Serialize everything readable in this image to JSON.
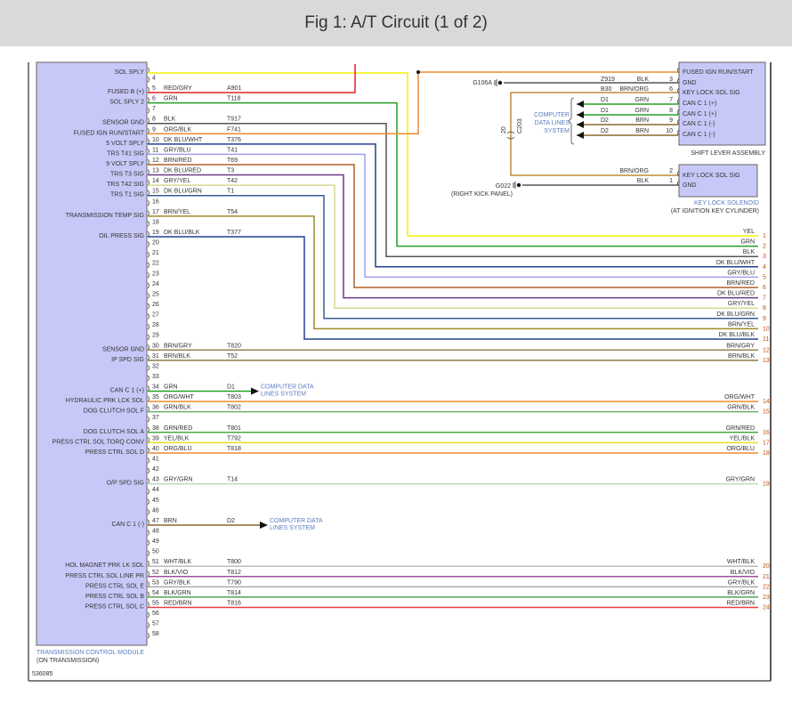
{
  "title": "Fig 1: A/T Circuit (1 of 2)",
  "figure_id": "536085",
  "colors": {
    "module_fill": "#c8c8f8",
    "module_label": "#5a7cc0",
    "title_bar": "#d9d9d9"
  },
  "tcm": {
    "name": "TRANSMISSION CONTROL MODULE",
    "location": "(ON TRANSMISSION)",
    "pin_numbers": [
      4,
      5,
      6,
      7,
      8,
      9,
      10,
      11,
      12,
      13,
      14,
      15,
      16,
      17,
      18,
      19,
      20,
      21,
      22,
      23,
      24,
      25,
      26,
      27,
      28,
      29,
      30,
      31,
      32,
      33,
      34,
      35,
      36,
      37,
      38,
      39,
      40,
      41,
      42,
      43,
      44,
      45,
      46,
      47,
      48,
      49,
      50,
      51,
      52,
      53,
      54,
      55,
      56,
      57,
      58
    ],
    "pins": [
      {
        "pin": 3,
        "label": "SOL SPLY",
        "wire": "",
        "circuit": "",
        "hex": "#f2f200",
        "route": "right",
        "row": 1
      },
      {
        "pin": 5,
        "label": "FUSED B (+)",
        "wire": "RED/GRY",
        "circuit": "A901",
        "hex": "#e02020",
        "route": "up"
      },
      {
        "pin": 6,
        "label": "SOL SPLY 2",
        "wire": "GRN",
        "circuit": "T118",
        "hex": "#22a022",
        "route": "right",
        "row": 2
      },
      {
        "pin": 8,
        "label": "SENSOR GND",
        "wire": "BLK",
        "circuit": "T917",
        "hex": "#555555",
        "route": "right",
        "row": 3
      },
      {
        "pin": 9,
        "label": "FUSED IGN RUN/START",
        "wire": "ORG/BLK",
        "circuit": "F741",
        "hex": "#f08a30",
        "route": "ign"
      },
      {
        "pin": 10,
        "label": "5 VOLT SPLY",
        "wire": "DK BLU/WHT",
        "circuit": "T376",
        "hex": "#24408f",
        "route": "right",
        "row": 4
      },
      {
        "pin": 11,
        "label": "TRS T41 SIG",
        "wire": "GRY/BLU",
        "circuit": "T41",
        "hex": "#a0a0ee",
        "route": "right",
        "row": 5
      },
      {
        "pin": 12,
        "label": "9 VOLT SPLY",
        "wire": "BRN/RED",
        "circuit": "T69",
        "hex": "#b0602a",
        "route": "right",
        "row": 6
      },
      {
        "pin": 13,
        "label": "TRS T3 SIG",
        "wire": "DK BLU/RED",
        "circuit": "T3",
        "hex": "#6a3a8a",
        "route": "right",
        "row": 7
      },
      {
        "pin": 14,
        "label": "TRS T42 SIG",
        "wire": "GRY/YEL",
        "circuit": "T42",
        "hex": "#d8d890",
        "route": "right",
        "row": 8
      },
      {
        "pin": 15,
        "label": "TRS T1 SIG",
        "wire": "DK BLU/GRN",
        "circuit": "T1",
        "hex": "#3a5a9a",
        "route": "right",
        "row": 9
      },
      {
        "pin": 17,
        "label": "TRANSMISSION TEMP SIG",
        "wire": "BRN/YEL",
        "circuit": "T54",
        "hex": "#a08a2a",
        "route": "right",
        "row": 10
      },
      {
        "pin": 19,
        "label": "OIL PRESS SIG",
        "wire": "DK BLU/BLK",
        "circuit": "T377",
        "hex": "#24408f",
        "route": "right",
        "row": 11
      },
      {
        "pin": 30,
        "label": "SENSOR GND",
        "wire": "BRN/GRY",
        "circuit": "T820",
        "hex": "#9a8050",
        "route": "straight",
        "row": 12
      },
      {
        "pin": 31,
        "label": "IP SPD SIG",
        "wire": "BRN/BLK",
        "circuit": "T52",
        "hex": "#8a7a4a",
        "route": "straight",
        "row": 13
      },
      {
        "pin": 34,
        "label": "CAN C 1 (+)",
        "wire": "GRN",
        "circuit": "D1",
        "hex": "#22a022",
        "route": "arrow",
        "dest": [
          "COMPUTER DATA",
          "LINES SYSTEM"
        ]
      },
      {
        "pin": 35,
        "label": "HYDRAULIC PRK LCK SOL",
        "wire": "ORG/WHT",
        "circuit": "T803",
        "hex": "#f08a30",
        "route": "straight",
        "row": 14
      },
      {
        "pin": 36,
        "label": "DOG CLUTCH SOL F",
        "wire": "GRN/BLK",
        "circuit": "T802",
        "hex": "#6ab06a",
        "route": "straight",
        "row": 15
      },
      {
        "pin": 38,
        "label": "DOG CLUTCH SOL A",
        "wire": "GRN/RED",
        "circuit": "T801",
        "hex": "#44aa44",
        "route": "straight",
        "row": 16
      },
      {
        "pin": 39,
        "label": "PRESS CTRL SOL TORQ CONV",
        "wire": "YEL/BLK",
        "circuit": "T792",
        "hex": "#e0e020",
        "route": "straight",
        "row": 17
      },
      {
        "pin": 40,
        "label": "PRESS CTRL SOL D",
        "wire": "ORG/BLU",
        "circuit": "T818",
        "hex": "#f08a30",
        "route": "straight",
        "row": 18
      },
      {
        "pin": 43,
        "label": "O/P SPD SIG",
        "wire": "GRY/GRN",
        "circuit": "T14",
        "hex": "#c0d8c0",
        "route": "straight",
        "row": 19
      },
      {
        "pin": 47,
        "label": "CAN C 1 (-)",
        "wire": "BRN",
        "circuit": "D2",
        "hex": "#8a6a2a",
        "route": "arrow",
        "dest": [
          "COMPUTER DATA",
          "LINES SYSTEM"
        ]
      },
      {
        "pin": 51,
        "label": "HOL MAGNET PRK LK SOL",
        "wire": "WHT/BLK",
        "circuit": "T800",
        "hex": "#bbbbbb",
        "route": "straight",
        "row": 20
      },
      {
        "pin": 52,
        "label": "PRESS CTRL SOL LINE PR",
        "wire": "BLK/VIO",
        "circuit": "T812",
        "hex": "#a050a0",
        "route": "straight",
        "row": 21
      },
      {
        "pin": 53,
        "label": "PRESS CTRL SOL E",
        "wire": "GRY/BLK",
        "circuit": "T790",
        "hex": "#aaaaaa",
        "route": "straight",
        "row": 22
      },
      {
        "pin": 54,
        "label": "PRESS CTRL SOL B",
        "wire": "BLK/GRN",
        "circuit": "T814",
        "hex": "#55a055",
        "route": "straight",
        "row": 23
      },
      {
        "pin": 55,
        "label": "PRESS CTRL SOL C",
        "wire": "RED/BRN",
        "circuit": "T816",
        "hex": "#e84040",
        "route": "straight",
        "row": 24
      }
    ]
  },
  "connector_rows": [
    {
      "row": 1,
      "wire": "YEL"
    },
    {
      "row": 2,
      "wire": "GRN"
    },
    {
      "row": 3,
      "wire": "BLK"
    },
    {
      "row": 4,
      "wire": "DK BLU/WHT"
    },
    {
      "row": 5,
      "wire": "GRY/BLU"
    },
    {
      "row": 6,
      "wire": "BRN/RED"
    },
    {
      "row": 7,
      "wire": "DK BLU/RED"
    },
    {
      "row": 8,
      "wire": "GRY/YEL"
    },
    {
      "row": 9,
      "wire": "DK BLU/GRN"
    },
    {
      "row": 10,
      "wire": "BRN/YEL"
    },
    {
      "row": 11,
      "wire": "DK BLU/BLK"
    },
    {
      "row": 12,
      "wire": "BRN/GRY"
    },
    {
      "row": 13,
      "wire": "BRN/BLK"
    },
    {
      "row": 14,
      "wire": "ORG/WHT"
    },
    {
      "row": 15,
      "wire": "GRN/BLK"
    },
    {
      "row": 16,
      "wire": "GRN/RED"
    },
    {
      "row": 17,
      "wire": "YEL/BLK"
    },
    {
      "row": 18,
      "wire": "ORG/BLU"
    },
    {
      "row": 19,
      "wire": "GRY/GRN"
    },
    {
      "row": 20,
      "wire": "WHT/BLK"
    },
    {
      "row": 21,
      "wire": "BLK/VIO"
    },
    {
      "row": 22,
      "wire": "GRY/BLK"
    },
    {
      "row": 23,
      "wire": "BLK/GRN"
    },
    {
      "row": 24,
      "wire": "RED/BRN"
    }
  ],
  "shift_lever": {
    "name": "SHIFT LEVER ASSEMBLY",
    "pins": [
      {
        "label": "FUSED IGN RUN/START",
        "pin": "",
        "circuit": "",
        "wire": "",
        "hex": "#f08a30"
      },
      {
        "label": "GND",
        "pin": "3",
        "circuit": "Z919",
        "wire": "BLK",
        "hex": "#555555"
      },
      {
        "label": "KEY LOCK SOL SIG",
        "pin": "6",
        "circuit": "B30",
        "wire": "BRN/ORG",
        "hex": "#c08a3a"
      },
      {
        "label": "CAN C 1 (+)",
        "pin": "7",
        "circuit": "D1",
        "wire": "GRN",
        "hex": "#22a022"
      },
      {
        "label": "CAN C 1 (+)",
        "pin": "8",
        "circuit": "D1",
        "wire": "GRN",
        "hex": "#22a022"
      },
      {
        "label": "CAN C 1 (-)",
        "pin": "9",
        "circuit": "D2",
        "wire": "BRN",
        "hex": "#8a6a2a"
      },
      {
        "label": "CAN C 1 (-)",
        "pin": "10",
        "circuit": "D2",
        "wire": "BRN",
        "hex": "#8a6a2a"
      }
    ],
    "ground": "G106A",
    "data_lines": [
      "COMPUTER",
      "DATA LINES",
      "SYSTEM"
    ],
    "inline_connector": [
      "20",
      "C203"
    ]
  },
  "key_lock_solenoid": {
    "name": "KEY LOCK SOLENOID",
    "location": "(AT IGNITION KEY CYLINDER)",
    "pins": [
      {
        "label": "KEY LOCK SOL SIG",
        "pin": "2",
        "wire": "BRN/ORG"
      },
      {
        "label": "GND",
        "pin": "1",
        "wire": "BLK"
      }
    ],
    "ground": "G022",
    "ground_location": "(RIGHT KICK PANEL)"
  }
}
